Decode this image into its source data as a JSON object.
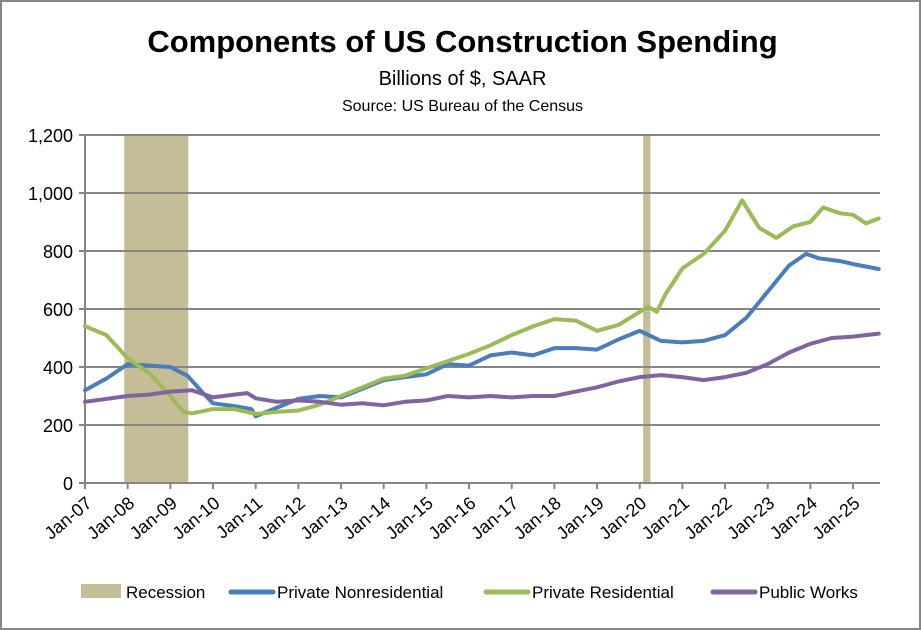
{
  "chart_data": {
    "type": "line",
    "title": "Components of US Construction Spending",
    "subtitle": "Billions of $, SAAR",
    "source": "Source:  US Bureau of the Census",
    "xlabel": "",
    "ylabel": "",
    "ylim": [
      0,
      1200
    ],
    "xlim": [
      2007.0,
      2025.65
    ],
    "yticks": [
      0,
      200,
      400,
      600,
      800,
      1000,
      1200
    ],
    "ytick_labels": [
      "0",
      "200",
      "400",
      "600",
      "800",
      "1,000",
      "1,200"
    ],
    "xticks": [
      2007,
      2008,
      2009,
      2010,
      2011,
      2012,
      2013,
      2014,
      2015,
      2016,
      2017,
      2018,
      2019,
      2020,
      2021,
      2022,
      2023,
      2024,
      2025
    ],
    "xtick_labels": [
      "Jan-07",
      "Jan-08",
      "Jan-09",
      "Jan-10",
      "Jan-11",
      "Jan-12",
      "Jan-13",
      "Jan-14",
      "Jan-15",
      "Jan-16",
      "Jan-17",
      "Jan-18",
      "Jan-19",
      "Jan-20",
      "Jan-21",
      "Jan-22",
      "Jan-23",
      "Jan-24",
      "Jan-25"
    ],
    "grid": true,
    "legend_position": "bottom",
    "recessions": [
      {
        "name": "Recession",
        "start": 2007.92,
        "end": 2009.42
      },
      {
        "name": "Recession",
        "start": 2020.08,
        "end": 2020.25
      }
    ],
    "recession_color": "#C4BD97",
    "recession_label": "Recession",
    "series": [
      {
        "name": "Private Nonresidential",
        "color": "#4A7EBB",
        "x": [
          2007.0,
          2007.5,
          2008.0,
          2008.5,
          2009.0,
          2009.4,
          2009.8,
          2010.0,
          2010.5,
          2010.9,
          2011.0,
          2011.5,
          2012.0,
          2012.5,
          2013.0,
          2013.5,
          2014.0,
          2014.5,
          2015.0,
          2015.5,
          2016.0,
          2016.5,
          2017.0,
          2017.5,
          2018.0,
          2018.5,
          2019.0,
          2019.5,
          2020.0,
          2020.5,
          2021.0,
          2021.5,
          2022.0,
          2022.5,
          2023.0,
          2023.5,
          2023.9,
          2024.2,
          2024.7,
          2025.0,
          2025.6
        ],
        "values": [
          320,
          360,
          410,
          405,
          400,
          370,
          305,
          275,
          265,
          255,
          230,
          260,
          290,
          300,
          295,
          325,
          355,
          365,
          375,
          410,
          405,
          440,
          450,
          440,
          465,
          465,
          460,
          495,
          525,
          490,
          485,
          490,
          510,
          570,
          660,
          750,
          790,
          775,
          765,
          755,
          738
        ]
      },
      {
        "name": "Private Residential",
        "color": "#9BBB59",
        "x": [
          2007.0,
          2007.5,
          2008.0,
          2008.5,
          2009.0,
          2009.3,
          2009.5,
          2010.0,
          2010.5,
          2011.0,
          2011.5,
          2012.0,
          2012.5,
          2013.0,
          2013.5,
          2014.0,
          2014.5,
          2015.0,
          2015.5,
          2016.0,
          2016.5,
          2017.0,
          2017.5,
          2018.0,
          2018.5,
          2019.0,
          2019.5,
          2020.0,
          2020.2,
          2020.4,
          2020.6,
          2021.0,
          2021.5,
          2022.0,
          2022.4,
          2022.8,
          2023.2,
          2023.6,
          2024.0,
          2024.3,
          2024.7,
          2025.0,
          2025.3,
          2025.6
        ],
        "values": [
          541,
          510,
          430,
          380,
          300,
          245,
          240,
          255,
          255,
          238,
          245,
          250,
          270,
          300,
          330,
          360,
          370,
          395,
          420,
          445,
          475,
          510,
          540,
          565,
          560,
          525,
          545,
          590,
          608,
          590,
          650,
          740,
          790,
          870,
          975,
          880,
          845,
          885,
          900,
          950,
          930,
          925,
          895,
          912
        ]
      },
      {
        "name": "Public Works",
        "color": "#8064A2",
        "x": [
          2007.0,
          2008.0,
          2008.5,
          2009.0,
          2009.5,
          2010.0,
          2010.5,
          2010.8,
          2011.0,
          2011.5,
          2012.0,
          2012.5,
          2013.0,
          2013.5,
          2014.0,
          2014.5,
          2015.0,
          2015.5,
          2016.0,
          2016.5,
          2017.0,
          2017.5,
          2018.0,
          2018.5,
          2019.0,
          2019.5,
          2020.0,
          2020.5,
          2021.0,
          2021.5,
          2022.0,
          2022.5,
          2023.0,
          2023.5,
          2024.0,
          2024.5,
          2025.0,
          2025.6
        ],
        "values": [
          280,
          300,
          305,
          315,
          320,
          295,
          305,
          310,
          292,
          280,
          285,
          280,
          270,
          275,
          268,
          280,
          285,
          300,
          295,
          300,
          295,
          300,
          300,
          315,
          330,
          350,
          365,
          372,
          365,
          355,
          365,
          380,
          410,
          450,
          480,
          500,
          505,
          515
        ]
      }
    ]
  }
}
